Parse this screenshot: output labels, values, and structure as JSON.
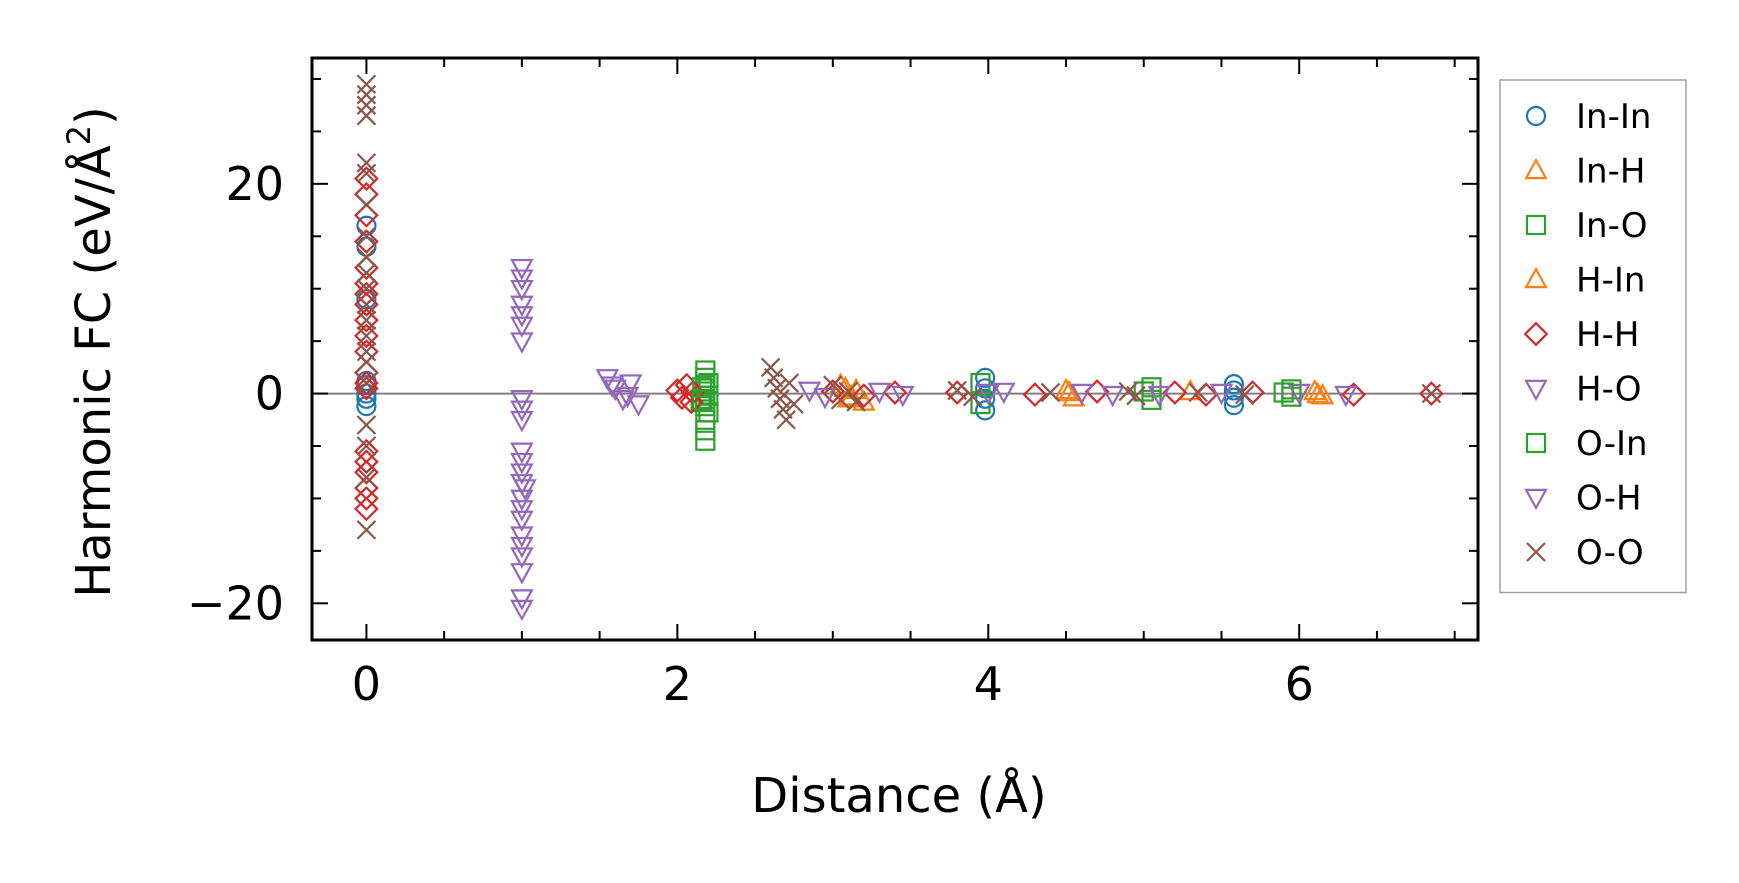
{
  "chart_data": {
    "type": "scatter",
    "xlabel": "Distance (Å)",
    "ylabel_main": "Harmonic FC (eV/Å",
    "ylabel_sup": "2",
    "ylabel_close": ")",
    "xlim": [
      -0.35,
      7.15
    ],
    "ylim": [
      -23.5,
      32
    ],
    "xticks": [
      0,
      2,
      4,
      6
    ],
    "xtick_labels": [
      "0",
      "2",
      "4",
      "6"
    ],
    "yticks": [
      -20,
      0,
      20
    ],
    "ytick_labels": [
      "−20",
      "0",
      "20"
    ],
    "zero_line": true,
    "grid": false,
    "legend_position": "outside-right",
    "series": [
      {
        "name": "In-In",
        "marker": "circle",
        "color": "#1f77b4",
        "points": [
          [
            0,
            0
          ],
          [
            0,
            0.8
          ],
          [
            0,
            -0.5
          ],
          [
            0,
            1.2
          ],
          [
            0,
            16
          ],
          [
            0,
            14
          ],
          [
            0,
            9
          ],
          [
            0,
            -1.2
          ],
          [
            3.98,
            1.5
          ],
          [
            3.98,
            -1.6
          ],
          [
            3.98,
            0.5
          ],
          [
            3.98,
            -0.5
          ],
          [
            5.58,
            0.9
          ],
          [
            5.58,
            -1.1
          ],
          [
            5.58,
            0.3
          ],
          [
            5.58,
            -0.4
          ]
        ]
      },
      {
        "name": "In-H",
        "marker": "triangle-up",
        "color": "#ff7f0e",
        "points": [
          [
            3.05,
            0.8
          ],
          [
            3.1,
            -0.5
          ],
          [
            3.15,
            0.3
          ],
          [
            3.2,
            -0.8
          ],
          [
            4.5,
            0.3
          ],
          [
            4.55,
            -0.4
          ],
          [
            6.1,
            0.2
          ],
          [
            6.15,
            -0.2
          ],
          [
            5.3,
            0.2
          ]
        ]
      },
      {
        "name": "In-O",
        "marker": "square",
        "color": "#2ca02c",
        "points": [
          [
            2.18,
            2.2
          ],
          [
            2.18,
            1.5
          ],
          [
            2.18,
            0.8
          ],
          [
            2.18,
            0.2
          ],
          [
            2.18,
            -0.5
          ],
          [
            2.18,
            -1.2
          ],
          [
            2.18,
            -2.5
          ],
          [
            2.18,
            -3.5
          ],
          [
            2.18,
            -4.5
          ],
          [
            2.2,
            1.0
          ],
          [
            2.2,
            -0.2
          ],
          [
            2.2,
            -1.8
          ],
          [
            2.15,
            -0.8
          ],
          [
            3.95,
            1.0
          ],
          [
            3.95,
            -1.0
          ],
          [
            5.05,
            0.6
          ],
          [
            5.05,
            -0.6
          ],
          [
            5.95,
            0.4
          ],
          [
            5.95,
            -0.3
          ]
        ]
      },
      {
        "name": "H-In",
        "marker": "triangle-up",
        "color": "#ff7f0e",
        "points": [
          [
            3.08,
            0.5
          ],
          [
            3.12,
            -0.3
          ],
          [
            4.52,
            0.1
          ],
          [
            6.12,
            -0.1
          ]
        ]
      },
      {
        "name": "H-H",
        "marker": "diamond",
        "color": "#d62728",
        "points": [
          [
            0,
            20.5
          ],
          [
            0,
            19
          ],
          [
            0,
            17
          ],
          [
            0,
            14.5
          ],
          [
            0,
            12
          ],
          [
            0,
            10.5
          ],
          [
            0,
            9.5
          ],
          [
            0,
            8.5
          ],
          [
            0,
            7
          ],
          [
            0,
            5.5
          ],
          [
            0,
            4
          ],
          [
            0,
            2
          ],
          [
            0,
            1
          ],
          [
            0,
            0.5
          ],
          [
            0,
            -5.5
          ],
          [
            0,
            -6.5
          ],
          [
            0,
            -7.5
          ],
          [
            0,
            -9
          ],
          [
            0,
            -10
          ],
          [
            0,
            -11
          ],
          [
            2.0,
            0.3
          ],
          [
            2.03,
            -0.4
          ],
          [
            2.06,
            0.8
          ],
          [
            2.09,
            -0.8
          ],
          [
            2.1,
            0.1
          ],
          [
            3.0,
            0.2
          ],
          [
            3.2,
            -0.2
          ],
          [
            3.4,
            0.1
          ],
          [
            3.8,
            0.1
          ],
          [
            4.3,
            -0.1
          ],
          [
            4.7,
            0.2
          ],
          [
            5.2,
            0.1
          ],
          [
            5.4,
            -0.1
          ],
          [
            5.7,
            0.1
          ],
          [
            6.35,
            -0.1
          ],
          [
            6.85,
            0
          ]
        ]
      },
      {
        "name": "H-O",
        "marker": "triangle-down",
        "color": "#9467bd",
        "points": [
          [
            1.0,
            12
          ],
          [
            1.0,
            11
          ],
          [
            1.0,
            10
          ],
          [
            1.0,
            8.5
          ],
          [
            1.0,
            7.5
          ],
          [
            1.0,
            6.5
          ],
          [
            1.0,
            5
          ],
          [
            1.0,
            -0.5
          ],
          [
            1.0,
            -1.5
          ],
          [
            1.0,
            -2.5
          ],
          [
            1.0,
            -5.5
          ],
          [
            1.0,
            -6.5
          ],
          [
            1.0,
            -7.5
          ],
          [
            1.0,
            -8.5
          ],
          [
            1.0,
            -10
          ],
          [
            1.0,
            -11
          ],
          [
            1.0,
            -12
          ],
          [
            1.0,
            -13.5
          ],
          [
            1.0,
            -14.5
          ],
          [
            1.0,
            -15.5
          ],
          [
            1.0,
            -17
          ],
          [
            1.0,
            -19.5
          ],
          [
            1.0,
            -20.5
          ],
          [
            1.55,
            1.5
          ],
          [
            1.6,
            0.5
          ],
          [
            1.65,
            -0.5
          ],
          [
            1.7,
            1.0
          ],
          [
            1.75,
            -1.0
          ],
          [
            2.85,
            0.3
          ],
          [
            2.95,
            -0.3
          ],
          [
            3.3,
            0.2
          ],
          [
            3.45,
            -0.1
          ],
          [
            4.1,
            0.2
          ],
          [
            4.6,
            0.1
          ],
          [
            4.8,
            -0.1
          ],
          [
            5.5,
            0.1
          ],
          [
            6.0,
            0.1
          ],
          [
            6.3,
            -0.1
          ]
        ]
      },
      {
        "name": "O-In",
        "marker": "square",
        "color": "#2ca02c",
        "points": [
          [
            2.16,
            0.6
          ],
          [
            2.16,
            -0.6
          ],
          [
            5.0,
            0.2
          ],
          [
            5.9,
            0.1
          ]
        ]
      },
      {
        "name": "O-H",
        "marker": "triangle-down",
        "color": "#9467bd",
        "points": [
          [
            1.02,
            -9
          ],
          [
            1.58,
            0.8
          ],
          [
            1.68,
            -0.2
          ],
          [
            4.0,
            0.1
          ],
          [
            5.1,
            -0.1
          ]
        ]
      },
      {
        "name": "O-O",
        "marker": "x",
        "color": "#8c564b",
        "points": [
          [
            0,
            29.5
          ],
          [
            0,
            28.5
          ],
          [
            0,
            27.5
          ],
          [
            0,
            26.5
          ],
          [
            0,
            22
          ],
          [
            0,
            21
          ],
          [
            0,
            18
          ],
          [
            0,
            15
          ],
          [
            0,
            13
          ],
          [
            0,
            11.5
          ],
          [
            0,
            10
          ],
          [
            0,
            8.5
          ],
          [
            0,
            7
          ],
          [
            0,
            5.5
          ],
          [
            0,
            4
          ],
          [
            0,
            3
          ],
          [
            0,
            1
          ],
          [
            0,
            -3
          ],
          [
            0,
            -5
          ],
          [
            0,
            -8
          ],
          [
            0,
            -13
          ],
          [
            2.6,
            2.5
          ],
          [
            2.62,
            1.5
          ],
          [
            2.64,
            0.5
          ],
          [
            2.66,
            -0.5
          ],
          [
            2.68,
            -1.5
          ],
          [
            2.7,
            -2.5
          ],
          [
            2.72,
            1.0
          ],
          [
            2.75,
            -1.0
          ],
          [
            3.0,
            0.8
          ],
          [
            3.05,
            -0.6
          ],
          [
            3.1,
            0.2
          ],
          [
            3.15,
            -0.8
          ],
          [
            3.8,
            0.3
          ],
          [
            3.9,
            -0.3
          ],
          [
            4.4,
            0.1
          ],
          [
            4.9,
            0.2
          ],
          [
            4.95,
            -0.2
          ],
          [
            5.35,
            0.1
          ],
          [
            5.65,
            -0.1
          ],
          [
            6.85,
            0
          ]
        ]
      }
    ]
  }
}
